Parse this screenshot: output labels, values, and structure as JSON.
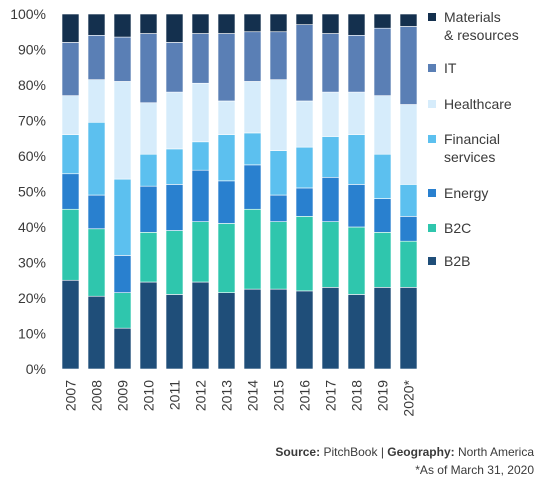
{
  "chart_data": {
    "type": "bar",
    "stacked": true,
    "normalized": true,
    "categories": [
      "2007",
      "2008",
      "2009",
      "2010",
      "2011",
      "2012",
      "2013",
      "2014",
      "2015",
      "2016",
      "2017",
      "2018",
      "2019",
      "2020*"
    ],
    "ylim": [
      0,
      100
    ],
    "yticks": [
      "0%",
      "10%",
      "20%",
      "30%",
      "40%",
      "50%",
      "60%",
      "70%",
      "80%",
      "90%",
      "100%"
    ],
    "grid": false,
    "legend_position": "right",
    "series": [
      {
        "name": "B2B",
        "color": "#1f4e79",
        "values": [
          25,
          20.5,
          11.5,
          24.5,
          21,
          24.5,
          21.5,
          22.5,
          22.5,
          22,
          23,
          21,
          23,
          23
        ]
      },
      {
        "name": "B2C",
        "color": "#2fc6ad",
        "values": [
          20,
          19,
          10,
          14,
          18,
          17,
          19.5,
          22.5,
          19,
          21,
          18.5,
          19,
          15.5,
          13
        ]
      },
      {
        "name": "Energy",
        "color": "#2980cf",
        "values": [
          10,
          9.5,
          10.5,
          13,
          13,
          14.5,
          12,
          12.5,
          7.5,
          8,
          12.5,
          12,
          9.5,
          7
        ]
      },
      {
        "name": "Financial services",
        "color": "#5cc0ef",
        "values": [
          11,
          20.5,
          21.5,
          9,
          10,
          8,
          13,
          9,
          12.5,
          11.5,
          11.5,
          14,
          12.5,
          9
        ]
      },
      {
        "name": "Healthcare",
        "color": "#d6ecfb",
        "values": [
          11,
          12,
          27.5,
          14.5,
          16,
          16.5,
          9.5,
          14.5,
          20,
          13,
          12.5,
          12,
          16.5,
          22.5
        ]
      },
      {
        "name": "IT",
        "color": "#5a7fb5",
        "values": [
          15,
          12.5,
          12.5,
          19.5,
          14,
          14,
          19,
          14,
          13.5,
          21.5,
          16.5,
          16,
          19,
          22
        ]
      },
      {
        "name": "Materials\n& resources",
        "color": "#14304e",
        "values": [
          8,
          6,
          6.5,
          5.5,
          8,
          5.5,
          5.5,
          5,
          5,
          3,
          5.5,
          6,
          4,
          3.5
        ]
      }
    ]
  },
  "legend": {
    "items": [
      {
        "label": "Materials\n& resources",
        "color": "#14304e"
      },
      {
        "label": "IT",
        "color": "#5a7fb5"
      },
      {
        "label": "Healthcare",
        "color": "#d6ecfb"
      },
      {
        "label": "Financial\nservices",
        "color": "#5cc0ef"
      },
      {
        "label": "Energy",
        "color": "#2980cf"
      },
      {
        "label": "B2C",
        "color": "#2fc6ad"
      },
      {
        "label": "B2B",
        "color": "#1f4e79"
      }
    ]
  },
  "footer": {
    "source_label": "Source:",
    "source_value": "PitchBook",
    "separator": "|",
    "geography_label": "Geography:",
    "geography_value": "North America",
    "note": "*As of March 31, 2020"
  }
}
